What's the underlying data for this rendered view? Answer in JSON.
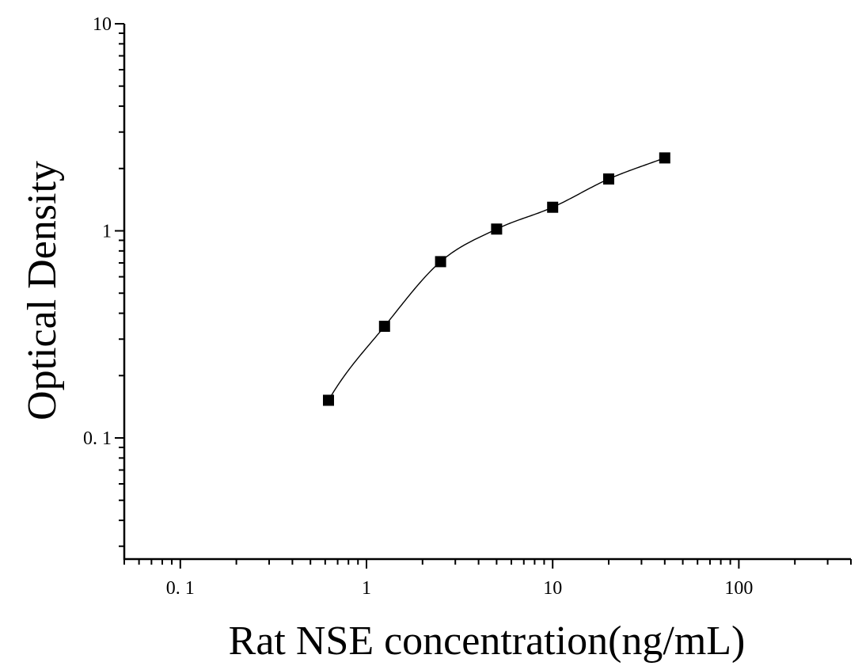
{
  "chart_data": {
    "type": "scatter",
    "xlabel": "Rat NSE concentration(ng/mL)",
    "ylabel": "Optical Density",
    "x_scale": "log",
    "y_scale": "log",
    "xlim": [
      0.05,
      400
    ],
    "ylim": [
      0.026,
      10
    ],
    "x_ticks": [
      {
        "value": 0.1,
        "label": "0. 1"
      },
      {
        "value": 1,
        "label": "1"
      },
      {
        "value": 10,
        "label": "10"
      },
      {
        "value": 100,
        "label": "100"
      }
    ],
    "y_ticks": [
      {
        "value": 0.1,
        "label": "0. 1"
      },
      {
        "value": 1,
        "label": "1"
      },
      {
        "value": 10,
        "label": "10"
      }
    ],
    "grid": false,
    "series": [
      {
        "x": [
          0.625,
          1.25,
          2.5,
          5,
          10,
          20,
          40
        ],
        "y": [
          0.152,
          0.346,
          0.71,
          1.02,
          1.3,
          1.78,
          2.25
        ]
      }
    ],
    "fit_curve": true,
    "colors": {
      "marker": "#000000",
      "curve": "#000000",
      "axis": "#000000"
    }
  }
}
